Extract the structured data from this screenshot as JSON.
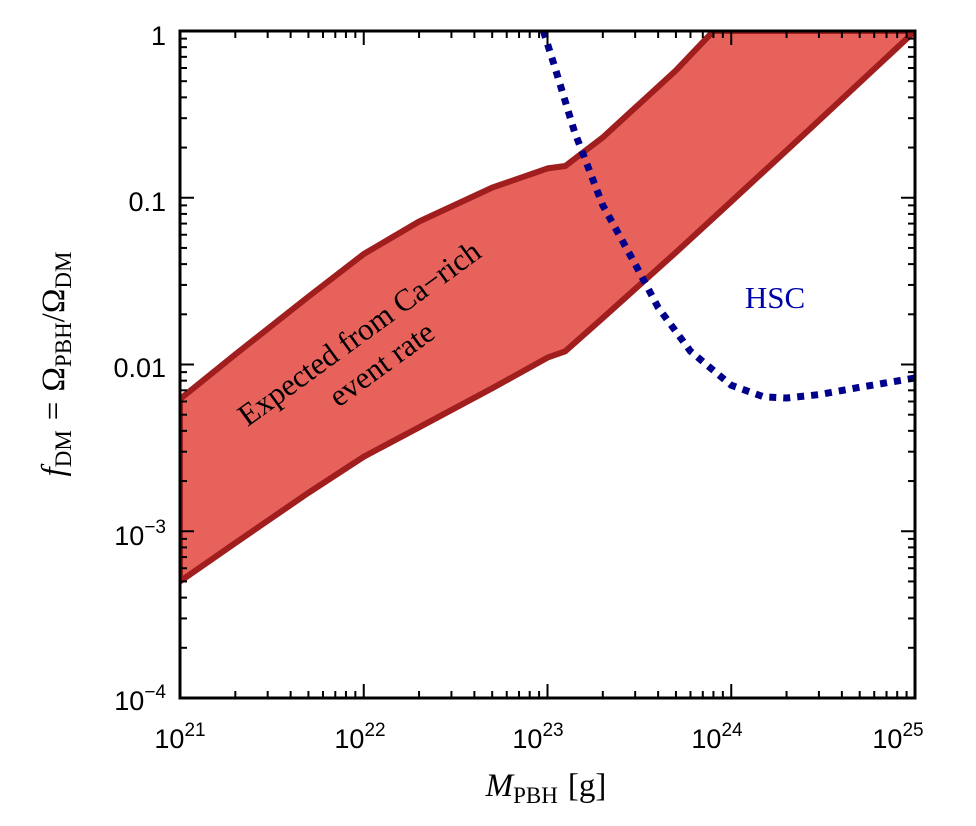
{
  "chart_data": {
    "type": "area",
    "x_scale": "log",
    "y_scale": "log",
    "xlim": [
      1e+21,
      1e+25
    ],
    "ylim": [
      0.0001,
      1
    ],
    "xlabel": {
      "main": "M",
      "sub": "PBH",
      "unit": "[g]"
    },
    "ylabel": {
      "f": "f",
      "f_sub": "DM",
      "eq": "=",
      "omega": "Ω",
      "num_sub": "PBH",
      "slash": "/",
      "den_sub": "DM"
    },
    "x_ticks": [
      {
        "value": 1e+21,
        "base": "10",
        "exp": "21"
      },
      {
        "value": 1e+22,
        "base": "10",
        "exp": "22"
      },
      {
        "value": 1e+23,
        "base": "10",
        "exp": "23"
      },
      {
        "value": 1e+24,
        "base": "10",
        "exp": "24"
      },
      {
        "value": 1e+25,
        "base": "10",
        "exp": "25"
      }
    ],
    "y_ticks": [
      {
        "value": 1,
        "label": "1",
        "base": "",
        "exp": ""
      },
      {
        "value": 0.1,
        "label": "0.1",
        "base": "",
        "exp": ""
      },
      {
        "value": 0.01,
        "label": "0.01",
        "base": "",
        "exp": ""
      },
      {
        "value": 0.001,
        "label": "",
        "base": "10",
        "exp": "−3"
      },
      {
        "value": 0.0001,
        "label": "",
        "base": "10",
        "exp": "−4"
      }
    ],
    "series": [
      {
        "kind": "band",
        "fill_color": "#e8625c",
        "edge_color": "#a01e1e",
        "upper": {
          "x": [
            1e+21,
            2e+21,
            5e+21,
            1e+22,
            2e+22,
            5e+22,
            1e+23,
            1.25e+23,
            2e+23,
            5e+23,
            8e+23,
            1e+24,
            3e+24,
            1e+25
          ],
          "y": [
            0.0062,
            0.0115,
            0.0255,
            0.046,
            0.072,
            0.115,
            0.15,
            0.155,
            0.23,
            0.58,
            1.0,
            1.0,
            1.0,
            1.0
          ]
        },
        "lower": {
          "x": [
            1e+21,
            2e+21,
            5e+21,
            1e+22,
            2e+22,
            5e+22,
            1e+23,
            1.25e+23,
            2e+23,
            5e+23,
            1e+24,
            3e+24,
            1e+25
          ],
          "y": [
            0.0005,
            0.00085,
            0.0017,
            0.0028,
            0.0042,
            0.0072,
            0.011,
            0.012,
            0.019,
            0.047,
            0.095,
            0.29,
            1.0
          ]
        }
      },
      {
        "kind": "line",
        "style": "dotted",
        "color": "#00008b",
        "x": [
          9.5e+22,
          1.1e+23,
          1.4e+23,
          2e+23,
          3e+23,
          4e+23,
          6e+23,
          1e+24,
          1.5e+24,
          2e+24,
          3e+24,
          5e+24,
          1e+25
        ],
        "y": [
          1.0,
          0.6,
          0.25,
          0.09,
          0.04,
          0.022,
          0.012,
          0.0075,
          0.0064,
          0.0063,
          0.0066,
          0.0073,
          0.0083
        ]
      }
    ],
    "annotations": [
      {
        "text": "Expected from Ca−rich",
        "color": "#000000"
      },
      {
        "text": "event rate",
        "color": "#000000"
      },
      {
        "text": "HSC",
        "color": "#0000aa"
      }
    ]
  }
}
